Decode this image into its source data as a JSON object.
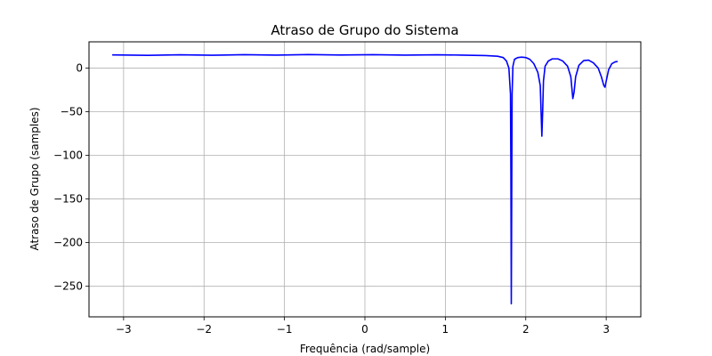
{
  "chart_data": {
    "type": "line",
    "title": "Atraso de Grupo do Sistema",
    "xlabel": "Frequência (rad/sample)",
    "ylabel": "Atraso de Grupo (samples)",
    "xlim": [
      -3.43,
      3.43
    ],
    "ylim": [
      -285,
      30
    ],
    "xticks": [
      -3,
      -2,
      -1,
      0,
      1,
      2,
      3
    ],
    "xtick_labels": [
      "−3",
      "−2",
      "−1",
      "0",
      "1",
      "2",
      "3"
    ],
    "yticks": [
      0,
      -50,
      -100,
      -150,
      -200,
      -250
    ],
    "ytick_labels": [
      "0",
      "−50",
      "−100",
      "−150",
      "−200",
      "−250"
    ],
    "grid": true,
    "legend": "none",
    "series": [
      {
        "color": "#0000ff",
        "x": [
          -3.1416,
          -2.7,
          -2.3,
          -1.9,
          -1.5,
          -1.1,
          -0.7,
          -0.3,
          0.1,
          0.5,
          0.9,
          1.2,
          1.5,
          1.65,
          1.72,
          1.76,
          1.79,
          1.81,
          1.815,
          1.82,
          1.825,
          1.83,
          1.84,
          1.86,
          1.9,
          1.95,
          2.0,
          2.05,
          2.1,
          2.15,
          2.18,
          2.2,
          2.21,
          2.22,
          2.24,
          2.28,
          2.33,
          2.4,
          2.46,
          2.52,
          2.56,
          2.585,
          2.6,
          2.62,
          2.66,
          2.72,
          2.78,
          2.84,
          2.9,
          2.94,
          2.97,
          2.985,
          3.0,
          3.03,
          3.07,
          3.11,
          3.1416
        ],
        "y": [
          15,
          14.5,
          15.2,
          14.6,
          15.3,
          14.8,
          15.4,
          14.9,
          15.3,
          14.8,
          15.2,
          14.8,
          14.3,
          13.5,
          12,
          8,
          0,
          -30,
          -120,
          -270,
          -150,
          -30,
          2,
          10,
          12,
          12.5,
          12,
          10,
          5,
          -5,
          -20,
          -78,
          -50,
          -15,
          2,
          8,
          10.5,
          10.5,
          8,
          2,
          -10,
          -35,
          -28,
          -10,
          3,
          8.5,
          9,
          6,
          0,
          -10,
          -20,
          -22,
          -15,
          -2,
          5,
          7,
          7.5
        ]
      }
    ]
  }
}
